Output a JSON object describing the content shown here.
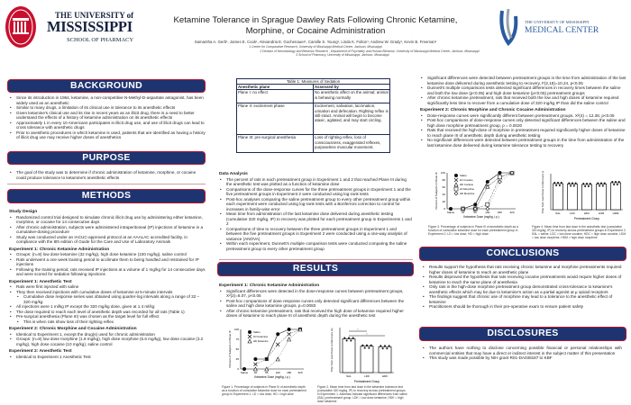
{
  "header": {
    "left_logo": {
      "line1": "THE UNIVERSITY of",
      "line2": "MISSISSIPPI",
      "line3": "SCHOOL OF PHARMACY",
      "seal_year": "1848"
    },
    "right_logo": {
      "line1": "THE UNIVERSITY OF MISSISSIPPI",
      "line2": "MEDICAL CENTER"
    },
    "title_line1": "Ketamine Tolerance in Sprague Dawley Rats Following Chronic Ketamine,",
    "title_line2": "Morphine, or Cocaine Administration",
    "authors": "Samantha A. Gerb¹, James E. Cook¹, Alexandria E. Gochenauer¹, Camille S. Young¹, Linda K. Fulton¹, Andrew W. Grady¹, Kevin B. Freeman²",
    "affiliations": [
      "1 Center for Comparative Research, University of Mississippi Medical Center, Jackson, Mississippi",
      "2 Division of Neurobiology and Behavior Research , Department of Psychiatry and Human Behavior, University of Mississippi Medical Center, Jackson, Mississippi",
      "3 School of Pharmacy, University of Mississippi, Jackson, Mississippi"
    ]
  },
  "background": {
    "heading": "BACKGROUND",
    "bullets": [
      "Since its introduction in 1964, ketamine, a non-competitive N-Methyl-D-aspartate antagonist, has been widely used as an anesthetic",
      "Similar to many drugs, a limitation of its clinical use is tolerance to its anesthetic effects",
      "Given ketamine's clinical use and its rise in recent years as an illicit drug, there is a need to better understand the effects of a history of ketamine administration on its anesthetic effects",
      "Approximately 1 in every 10 Americans participates in illicit drug use, and use of illicit drugs can lead to cross tolerance with anesthetic drugs",
      "Prior to anesthetic procedures in which ketamine is used, patients that are identified as having a history of illicit drug use may receive higher doses of anesthetics"
    ]
  },
  "purpose": {
    "heading": "PURPOSE",
    "bullets": [
      "The goal of the study was to determine if chronic administration of ketamine, morphine, or cocaine could produce tolerance to ketamine's anesthetic effects"
    ]
  },
  "methods": {
    "heading": "METHODS",
    "study_design": {
      "title": "Study Design",
      "bullets": [
        "Randomized control trial designed to simulate chronic illicit drug use by administering either ketamine, morphine, or cocaine for 14 consecutive days",
        "After chronic administration, subjects were administered intraperitoneal (IP) injections of ketamine in a cumulative-dosing procedure",
        "Study was conducted under an IACUC-approved protocol at an AAALAC accredited facility, in compliance with the 8th edition of Guide for the Care and Use of Laboratory Animals"
      ]
    },
    "exp1_admin": {
      "title": "Experiment 1: Chronic Ketamine Administration",
      "bullets": [
        "Groups: (n=8) low dose ketamine (32 mg/kg), high dose ketamine (100 mg/kg), saline control",
        "Rats underwent a one week training period to acclimate them to being handled and restrained for IP injections",
        "Following the training period, rats received IP injections at a volume of 1 mg/kg for 14 consecutive days and were scored for sedation following injections"
      ]
    },
    "exp1_test": {
      "title": "Experiment 1: Anesthetic Test",
      "bullets": [
        "Rats were first injected with saline",
        "They then received injections with cumulative doses of ketamine at 5-minute intervals",
        "Cumulative dose response series was obtained using quarter-log intervals along a range of 32 – 320 mg/kg",
        "All injections were 1 ml/kg IP except the 320 mg/kg dose, given at 1.4 ml/kg",
        "The dose required to reach each level of anesthetic depth was recorded for all rats (Table 1)",
        "Pre-surgical anesthesia (Plane III) was chosen as the target level for full effect",
        "This is when rats show loss of their righting reflex"
      ]
    },
    "exp2_admin": {
      "title": "Experiment 2: Chronic Morphine and Cocaine Administration",
      "bullets": [
        "Identical to Experiment 1, except the drug(s) used for chronic administration",
        "Groups: (n=8) low dose morphine (1.8 mg/kg), high dose morphine (5.6 mg/kg), low dose cocaine (3.2 mg/kg), high dose cocaine (10 mg/kg), saline control"
      ]
    },
    "exp2_test": {
      "title": "Experiment 2: Anesthetic Test",
      "bullets": [
        "Identical to Experiment 1 Anesthetic Test"
      ]
    }
  },
  "table1": {
    "caption": "Table 1: Measures of Sedation",
    "headers": [
      "Anesthetic plane",
      "Assessed by"
    ],
    "rows": [
      [
        "Plane I: no effect",
        "No anesthetic affect on the animal; animal is behaving normally"
      ],
      [
        "Plane II: excitement phase",
        "Excitement, salivation, lacrimation, urination and defecation. Righting reflex is still intact. Animal will begin to become ataxic, agitated, and may start circling."
      ],
      [
        "Plane III: pre-surgical anesthesia",
        "Loss of righting reflex, loss of consciousness, exaggerated reflexes, purposeless muscular movement."
      ]
    ]
  },
  "data_analysis": {
    "title": "Data Analysis",
    "bullets": [
      "The percent of rats in each pretreatment group in Experiment 1 and 2 that reached Plane III during the anesthetic test was plotted as a function of ketamine dose",
      "Comparisons of the dose-response curves for the three pretreatment groups in Experiment 1 and the five pretreatment groups in Experiment 2 were conducted using log-rank tests",
      "Post-hoc analyses comparing the saline pretreatment group to every other pretreatment group within each experiment were conducted using log-rank tests with a Bonferroni correction to control for increases in family-wise error",
      "Mean time from administration of the last ketamine dose delivered during anesthetic testing (cumulative 320 mg/kg, IP) to recovery was plotted for each pretreatment group in Experiments 1 and 2",
      "Comparisons of time to recovery between the three pretreatment groups in Experiment 1 and between the five pretreatment groups in Experiment 2 were conducted using a one-way analysis of variance (ANOVA)",
      "Within each experiment, Dunnett's multiple comparison tests were conducted comparing the saline pretreatment group to every other pretreatment group"
    ]
  },
  "results": {
    "heading": "RESULTS",
    "exp1": {
      "title": "Experiment 1: Chronic Ketamine Administration",
      "bullets": [
        "Significant differences were detected in the dose-response curves between pretreatment groups, X²(2)=6.07, p<0.05",
        "Post-hoc comparisons of dose response curves only detected significant differences between the saline and high dose ketamine groups, p=0.0083",
        "After chronic ketamine pretreatment, rats that received the high dose of ketamine required higher doses of ketamine to reach plane III of anesthetic depth during the anesthetic test"
      ]
    },
    "exp1_cont": {
      "bullets": [
        "Significant differences were detected between pretreatment groups in the time from administration of the last ketamine dose delivered during anesthetic testing to recovery, F(2,18)=10.24, p<0.05",
        "Dunnett's multiple comparisons tests detected significant differences in recovery times between the saline and both the low dose (p<0.05) and high dose ketamine (p<0.05) pretreatment groups",
        "After chronic ketamine pretreatment, rats that received both the low and high doses of ketamine required significantly less time to recover from a cumulative dose of 320 mg/kg IP than did the saline control"
      ]
    },
    "exp2": {
      "title": "Experiment 2: Chronic Morphine and Chronic Cocaine Administration",
      "bullets": [
        "Dose-response curves were significantly different between pretreatment groups, X²(4) = 12.38, p<0.05",
        "Post-hoc comparisons of dose-response curves only detected significant differences between the saline and high dose morphine pretreatment group, p = 0.0020",
        "Rats that received the high-dose of morphine in pretreatment required significantly higher doses of ketamine to reach plane III of anesthetic depth during anesthetic testing",
        "No significant differences were detected between pretreatment groups in the time from administration of the last ketamine dose delivered during ketamine tolerance testing to recovery"
      ]
    }
  },
  "figures": [
    {
      "type": "line",
      "ylabel": "Percent of Subjects in Plane III",
      "xlabel": "Ketamine Dose (mg/kg, i.p.)",
      "x": [
        "Saline",
        "32",
        "56",
        "100",
        "180",
        "320"
      ],
      "yticks": [
        "0",
        "25",
        "50",
        "75",
        "100"
      ],
      "series": [
        {
          "name": "Saline",
          "marker": "circle",
          "values": [
            0,
            25,
            25,
            88,
            100,
            100
          ]
        },
        {
          "name": "LD Ketamine",
          "marker": "x",
          "values": [
            null,
            12,
            25,
            62,
            88,
            100
          ]
        },
        {
          "name": "HD Ketamine",
          "marker": "triangle",
          "values": [
            null,
            0,
            0,
            25,
            75,
            100
          ]
        }
      ],
      "caption": "Figure 1. Percentage of subjects in Plane III of anesthetic depth as a function of cumulative ketamine dose for each pretreatment group in Experiment 1. LD = low dose, HD = high dose"
    },
    {
      "type": "bar",
      "ylabel": "Time from Last Dose to Recovery (s)",
      "xlabel": "Pretreatment Group",
      "categories": [
        "SAL",
        "LDK",
        "HDK"
      ],
      "values": [
        60,
        47,
        46
      ],
      "significance": [
        "*",
        "*"
      ],
      "caption": "Figure 2. Mean time from last dose in the ketamine tolerance test (cumulative 320 mg/kg, IP) to recovery across pretreatment groups in Experiment 1. Asterisks indicate significant differences from saline (SAL) pretreatment group. LDK = low dose ketamine, HDK = high dose ketamine"
    },
    {
      "type": "line",
      "ylabel": "Percent of Subjects in Plane III",
      "xlabel": "Ketamine Dose (mg/kg, i.p.)",
      "x": [
        "Saline",
        "32",
        "56",
        "100",
        "180",
        "320"
      ],
      "yticks": [
        "0",
        "20",
        "40",
        "60",
        "80",
        "100"
      ],
      "series": [
        {
          "name": "Saline",
          "marker": "circle",
          "values": [
            0,
            0,
            12,
            75,
            100,
            100
          ]
        },
        {
          "name": "LD Cocaine",
          "marker": "x",
          "values": [
            null,
            0,
            0,
            62,
            88,
            100
          ]
        },
        {
          "name": "HD Cocaine",
          "marker": "triangle",
          "values": [
            null,
            0,
            0,
            62,
            88,
            100
          ]
        },
        {
          "name": "LD Morphine",
          "marker": "square",
          "values": [
            null,
            0,
            0,
            12,
            88,
            100
          ]
        },
        {
          "name": "HD Morphine",
          "marker": "diamond",
          "values": [
            null,
            0,
            0,
            0,
            75,
            100
          ]
        }
      ],
      "caption": "Figure 3. Percentage of subjects in Plane III of anesthetic depth as a function of cumulative ketamine dose for each pretreatment group in Experiment 2. LD = low dose, HD = high dose"
    },
    {
      "type": "bar",
      "ylabel": "Time from Last Dose to Recovery (s)",
      "xlabel": "Pretreatment Group",
      "categories": [
        "SAL",
        "LDC",
        "HDC",
        "LDM",
        "HDM"
      ],
      "values": [
        58,
        57,
        56,
        57,
        60
      ],
      "caption": "Figure 4. Mean time from last dose in the anesthetic test (cumulative 320 mg/kg, IP) to recovery across pretreatment groups in Experiment 2. SAL = saline, LDC = low dose cocaine, HDC = high dose cocaine, LDM = low dose morphine, HDM = high dose morphine"
    }
  ],
  "conclusions": {
    "heading": "CONCLUSIONS",
    "bullets": [
      "Results support the hypothesis that rats receiving chronic ketamine and morphine pretreatments required higher doses of ketamine to reach an anesthetic plane",
      "Results disproved the hypothesis that rats receiving cocaine pretreatments would require higher doses of ketamine to reach the same plane of anesthesia",
      "Only rats in the high-dose morphine pretreatment group demonstrated cross-tolerance to ketamine's anesthetic effects which may be due to ketamine's action as a partial agonist at μ opioid receptors",
      "The findings suggest that chronic use of morphine may lead to a tolerance to the anesthetic effect of ketamine",
      "Practitioners should be thorough in their pre-operative exam to ensure patient safety"
    ]
  },
  "disclosures": {
    "heading": "DISCLOSURES",
    "bullets": [
      "The authors have nothing to disclose concerning possible financial or personal relationships with commercial entities that may have a direct or indirect interest in the subject matter of this presentation",
      "This study was made possible by NIH grant R01-DA038187 to KBF"
    ]
  },
  "colors": {
    "navy": "#1e3471",
    "red": "#b5162b",
    "ummc_blue": "#2a5aa0"
  }
}
